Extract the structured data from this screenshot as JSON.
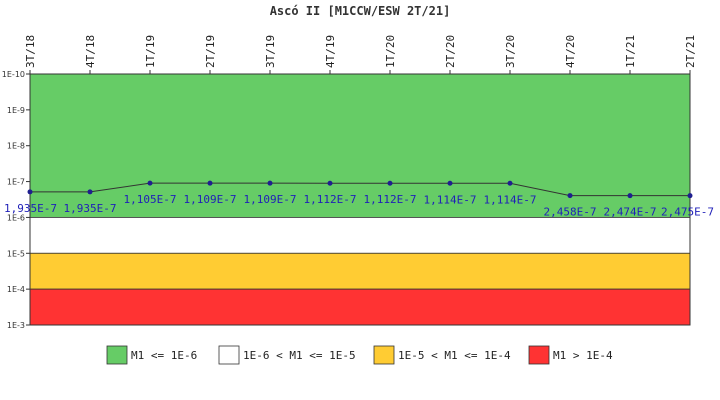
{
  "chart_data": {
    "type": "line",
    "title": "Ascó II [M1CCW/ESW 2T/21]",
    "xlabel": "",
    "ylabel": "",
    "x": [
      "3T/18",
      "4T/18",
      "1T/19",
      "2T/19",
      "3T/19",
      "4T/19",
      "1T/20",
      "2T/20",
      "3T/20",
      "4T/20",
      "1T/21",
      "2T/21"
    ],
    "series": [
      {
        "values": [
          1.935e-07,
          1.935e-07,
          1.105e-07,
          1.109e-07,
          1.109e-07,
          1.112e-07,
          1.112e-07,
          1.114e-07,
          1.114e-07,
          2.458e-07,
          2.474e-07,
          2.475e-07
        ],
        "labels": [
          "1,935E-7",
          "1,935E-7",
          "1,105E-7",
          "1,109E-7",
          "1,109E-7",
          "1,112E-7",
          "1,112E-7",
          "1,114E-7",
          "1,114E-7",
          "2,458E-7",
          "2,474E-7",
          "2,475E-7"
        ],
        "color": "#1f1f8f"
      }
    ],
    "y_scale": "log",
    "y_inverted": true,
    "ylim": [
      1e-10,
      0.001
    ],
    "y_ticks": [
      {
        "value": 1e-10,
        "label": "1E-10"
      },
      {
        "value": 1e-09,
        "label": "1E-9"
      },
      {
        "value": 1e-08,
        "label": "1E-8"
      },
      {
        "value": 1e-07,
        "label": "1E-7"
      },
      {
        "value": 1e-06,
        "label": "1E-6"
      },
      {
        "value": 1e-05,
        "label": "1E-5"
      },
      {
        "value": 0.0001,
        "label": "1E-4"
      },
      {
        "value": 0.001,
        "label": "1E-3"
      }
    ],
    "bands": [
      {
        "from": 1e-10,
        "to": 1e-06,
        "color": "#66cc66",
        "label": "M1 <= 1E-6"
      },
      {
        "from": 1e-06,
        "to": 1e-05,
        "color": "#ffffff",
        "label": "1E-6 < M1 <= 1E-5"
      },
      {
        "from": 1e-05,
        "to": 0.0001,
        "color": "#ffcc33",
        "label": "1E-5 < M1 <= 1E-4"
      },
      {
        "from": 0.0001,
        "to": 0.001,
        "color": "#ff3333",
        "label": "M1 > 1E-4"
      }
    ],
    "legend_position": "bottom",
    "grid": false
  }
}
